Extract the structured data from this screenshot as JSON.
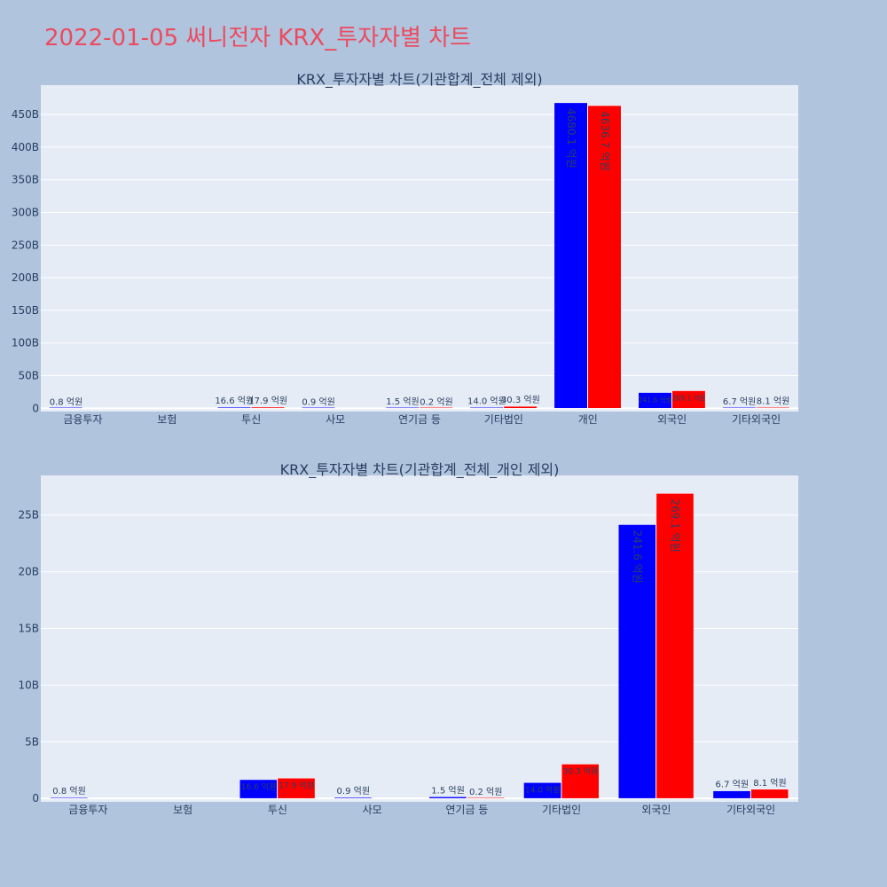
{
  "page": {
    "title": "2022-01-05 써니전자 KRX_투자자별 차트",
    "title_color": "#eb4b5e"
  },
  "colors": {
    "background": "#b0c4de",
    "plot_bg": "#e5ecf6",
    "grid": "#ffffff",
    "text": "#2a3f5f",
    "series1": "#0000ff",
    "series2": "#ff0000"
  },
  "chart_data": [
    {
      "type": "bar",
      "title": "KRX_투자자별 차트(기관합계_전체 제외)",
      "categories": [
        "금융투자",
        "보험",
        "투신",
        "사모",
        "연기금 등",
        "기타법인",
        "개인",
        "외국인",
        "기타외국인"
      ],
      "ylim": [
        -5,
        495
      ],
      "y_ticks": [
        0,
        50,
        100,
        150,
        200,
        250,
        300,
        350,
        400,
        450
      ],
      "y_tick_labels": [
        "0",
        "50B",
        "100B",
        "150B",
        "200B",
        "250B",
        "300B",
        "350B",
        "400B",
        "450B"
      ],
      "series": [
        {
          "color": "#0000ff",
          "values": [
            0.08,
            null,
            1.66,
            0.09,
            0.15,
            1.4,
            468.01,
            24.16,
            0.67
          ],
          "labels": [
            "0.8 억원",
            "",
            "16.6 억원",
            "0.9 억원",
            "1.5 억원",
            "14.0 억원",
            "4680.1 억원",
            "241.6 억원",
            "6.7 억원"
          ]
        },
        {
          "color": "#ff0000",
          "values": [
            null,
            null,
            1.79,
            null,
            0.02,
            3.03,
            463.67,
            26.91,
            0.81
          ],
          "labels": [
            "",
            "",
            "17.9 억원",
            "",
            "0.2 억원",
            "30.3 억원",
            "4636.7 억원",
            "269.1 억원",
            "8.1 억원"
          ]
        }
      ],
      "grid": true,
      "legend": "none"
    },
    {
      "type": "bar",
      "title": "KRX_투자자별 차트(기관합계_전체_개인 제외)",
      "categories": [
        "금융투자",
        "보험",
        "투신",
        "사모",
        "연기금 등",
        "기타법인",
        "외국인",
        "기타외국인"
      ],
      "ylim": [
        -0.3,
        28.5
      ],
      "y_ticks": [
        0,
        5,
        10,
        15,
        20,
        25
      ],
      "y_tick_labels": [
        "0",
        "5B",
        "10B",
        "15B",
        "20B",
        "25B"
      ],
      "series": [
        {
          "color": "#0000ff",
          "values": [
            0.08,
            null,
            1.66,
            0.09,
            0.15,
            1.4,
            24.16,
            0.67
          ],
          "labels": [
            "0.8 억원",
            "",
            "16.6 억원",
            "0.9 억원",
            "1.5 억원",
            "14.0 억원",
            "241.6 억원",
            "6.7 억원"
          ]
        },
        {
          "color": "#ff0000",
          "values": [
            null,
            null,
            1.79,
            null,
            0.02,
            3.03,
            26.91,
            0.81
          ],
          "labels": [
            "",
            "",
            "17.9 억원",
            "",
            "0.2 억원",
            "30.3 억원",
            "269.1 억원",
            "8.1 억원"
          ]
        }
      ],
      "grid": true,
      "legend": "none"
    }
  ]
}
